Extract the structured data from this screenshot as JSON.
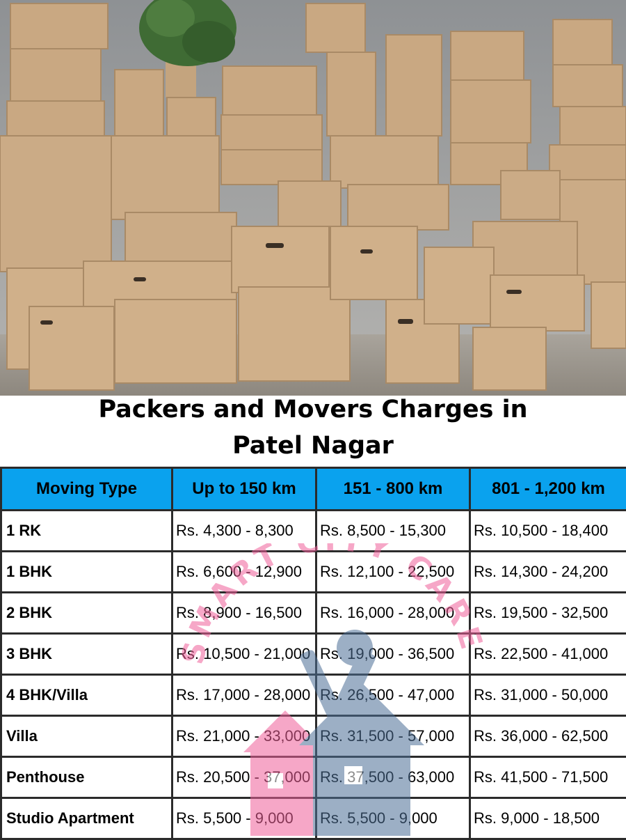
{
  "title": {
    "line1": "Packers and Movers Charges in",
    "line2": "Patel Nagar"
  },
  "table": {
    "headers": [
      "Moving Type",
      "Up to 150 km",
      "151 - 800 km",
      "801 - 1,200 km"
    ],
    "rows": [
      [
        "1 RK",
        "Rs. 4,300 - 8,300",
        "Rs. 8,500 - 15,300",
        "Rs. 10,500 - 18,400"
      ],
      [
        "1 BHK",
        "Rs. 6,600 - 12,900",
        "Rs. 12,100 - 22,500",
        "Rs. 14,300 - 24,200"
      ],
      [
        "2 BHK",
        "Rs. 8,900 - 16,500",
        "Rs. 16,000 - 28,000",
        "Rs. 19,500 - 32,500"
      ],
      [
        "3 BHK",
        "Rs. 10,500 - 21,000",
        "Rs. 19,000 - 36,500",
        "Rs. 22,500 - 41,000"
      ],
      [
        "4 BHK/Villa",
        "Rs. 17,000 - 28,000",
        "Rs. 26,500 - 47,000",
        "Rs. 31,000 - 50,000"
      ],
      [
        "Villa",
        "Rs. 21,000 - 33,000",
        "Rs. 31,500 - 57,000",
        "Rs. 36,000 - 62,500"
      ],
      [
        "Penthouse",
        "Rs. 20,500 - 37,000",
        "Rs. 37,500 - 63,000",
        "Rs. 41,500 - 71,500"
      ],
      [
        "Studio Apartment",
        "Rs. 5,500 - 9,000",
        "Rs. 5,500 - 9,000",
        "Rs. 9,000 - 18,500"
      ]
    ]
  },
  "watermark": {
    "text": "SMART CITY CARE",
    "colors": {
      "pink": "#f0619a",
      "blue": "#4d6f96"
    }
  },
  "colors": {
    "header_bg": "#0aa2ee",
    "box": "#c9a882",
    "border": "#2b2b2b"
  }
}
